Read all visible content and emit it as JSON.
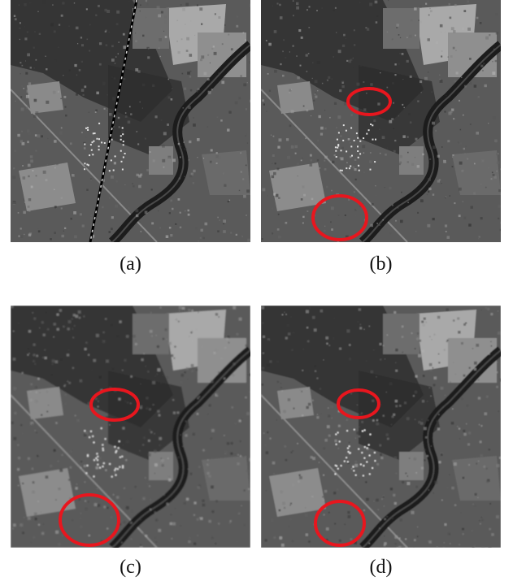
{
  "figure": {
    "panels": [
      {
        "id": "a",
        "caption": "(a)",
        "stripe_artifact": true,
        "highlights": 0,
        "blur": 0.0
      },
      {
        "id": "b",
        "caption": "(b)",
        "stripe_artifact": false,
        "highlights": 2,
        "blur": 0.3
      },
      {
        "id": "c",
        "caption": "(c)",
        "stripe_artifact": false,
        "highlights": 2,
        "blur": 0.8
      },
      {
        "id": "d",
        "caption": "(d)",
        "stripe_artifact": false,
        "highlights": 2,
        "blur": 0.5
      }
    ],
    "colors": {
      "highlight": "#e8161e",
      "river": "#1c1c1c",
      "ground": "#5a5a5a"
    }
  }
}
